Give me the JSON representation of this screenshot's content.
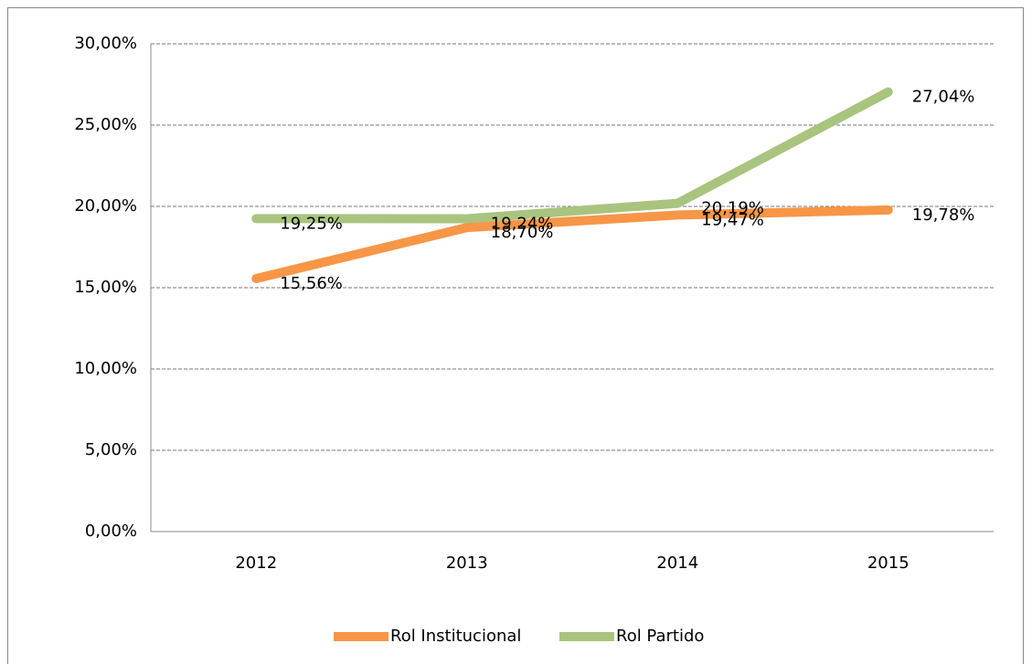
{
  "chart_data": {
    "type": "line",
    "categories": [
      "2012",
      "2013",
      "2014",
      "2015"
    ],
    "series": [
      {
        "name": "Rol Institucional",
        "color": "#f79646",
        "values": [
          15.56,
          18.7,
          19.47,
          19.78
        ],
        "value_labels": [
          "15,56%",
          "18,70%",
          "19,47%",
          "19,78%"
        ]
      },
      {
        "name": "Rol Partido",
        "color": "#a9c47f",
        "values": [
          19.25,
          19.24,
          20.19,
          27.04
        ],
        "value_labels": [
          "19,25%",
          "19,24%",
          "20,19%",
          "27,04%"
        ]
      }
    ],
    "ylim": [
      0,
      30
    ],
    "yticks": [
      {
        "value": 0,
        "label": "0,00%"
      },
      {
        "value": 5,
        "label": "5,00%"
      },
      {
        "value": 10,
        "label": "10,00%"
      },
      {
        "value": 15,
        "label": "15,00%"
      },
      {
        "value": 20,
        "label": "20,00%"
      },
      {
        "value": 25,
        "label": "25,00%"
      },
      {
        "value": 30,
        "label": "30,00%"
      }
    ],
    "grid": true,
    "legend": "bottom"
  }
}
